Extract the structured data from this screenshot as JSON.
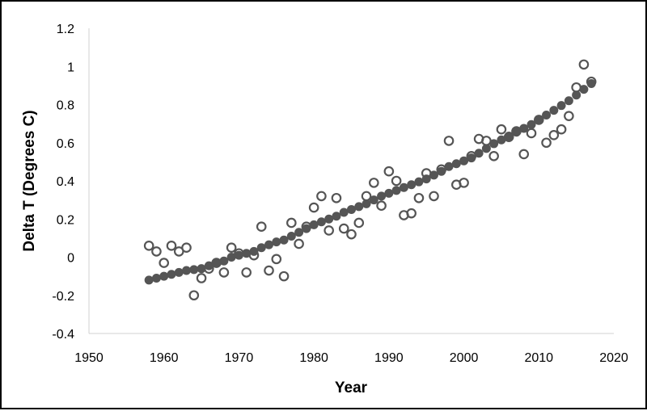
{
  "chart_data": {
    "type": "scatter",
    "xlabel": "Year",
    "ylabel": "Delta T (Degrees C)",
    "xlim": [
      1950,
      2020
    ],
    "ylim": [
      -0.4,
      1.2
    ],
    "x_ticks": [
      1950,
      1960,
      1970,
      1980,
      1990,
      2000,
      2010,
      2020
    ],
    "y_ticks": [
      -0.4,
      -0.2,
      0,
      0.2,
      0.4,
      0.6,
      0.8,
      1,
      1.2
    ],
    "x_tick_labels": [
      "1950",
      "1960",
      "1970",
      "1980",
      "1990",
      "2000",
      "2010",
      "2020"
    ],
    "y_tick_labels": [
      "-0.4",
      "-0.2",
      "0",
      "0.2",
      "0.4",
      "0.6",
      "0.8",
      "1",
      "1.2"
    ],
    "grid": false,
    "legend": "none",
    "series": [
      {
        "marker": "open-circle",
        "color": "#555555",
        "x": [
          1958,
          1959,
          1960,
          1961,
          1962,
          1963,
          1964,
          1965,
          1966,
          1967,
          1968,
          1969,
          1970,
          1971,
          1972,
          1973,
          1974,
          1975,
          1976,
          1977,
          1978,
          1979,
          1980,
          1981,
          1982,
          1983,
          1984,
          1985,
          1986,
          1987,
          1988,
          1989,
          1990,
          1991,
          1992,
          1993,
          1994,
          1995,
          1996,
          1997,
          1998,
          1999,
          2000,
          2001,
          2002,
          2003,
          2004,
          2005,
          2006,
          2007,
          2008,
          2009,
          2010,
          2011,
          2012,
          2013,
          2014,
          2015,
          2016,
          2017
        ],
        "y": [
          0.06,
          0.03,
          -0.03,
          0.06,
          0.03,
          0.05,
          -0.2,
          -0.11,
          -0.06,
          -0.03,
          -0.08,
          0.05,
          0.02,
          -0.08,
          0.01,
          0.16,
          -0.07,
          -0.01,
          -0.1,
          0.18,
          0.07,
          0.16,
          0.26,
          0.32,
          0.14,
          0.31,
          0.15,
          0.12,
          0.18,
          0.32,
          0.39,
          0.27,
          0.45,
          0.4,
          0.22,
          0.23,
          0.31,
          0.44,
          0.32,
          0.46,
          0.61,
          0.38,
          0.39,
          0.53,
          0.62,
          0.61,
          0.53,
          0.67,
          0.63,
          0.66,
          0.54,
          0.65,
          0.72,
          0.6,
          0.64,
          0.67,
          0.74,
          0.89,
          1.01,
          0.92
        ]
      },
      {
        "marker": "filled-circle",
        "color": "#555555",
        "x": [
          1958,
          1959,
          1960,
          1961,
          1962,
          1963,
          1964,
          1965,
          1966,
          1967,
          1968,
          1969,
          1970,
          1971,
          1972,
          1973,
          1974,
          1975,
          1976,
          1977,
          1978,
          1979,
          1980,
          1981,
          1982,
          1983,
          1984,
          1985,
          1986,
          1987,
          1988,
          1989,
          1990,
          1991,
          1992,
          1993,
          1994,
          1995,
          1996,
          1997,
          1998,
          1999,
          2000,
          2001,
          2002,
          2003,
          2004,
          2005,
          2006,
          2007,
          2008,
          2009,
          2010,
          2011,
          2012,
          2013,
          2014,
          2015,
          2016,
          2017
        ],
        "y": [
          -0.12,
          -0.11,
          -0.1,
          -0.09,
          -0.08,
          -0.07,
          -0.065,
          -0.06,
          -0.045,
          -0.03,
          -0.02,
          0.0,
          0.01,
          0.02,
          0.03,
          0.05,
          0.065,
          0.08,
          0.09,
          0.11,
          0.13,
          0.15,
          0.17,
          0.185,
          0.2,
          0.215,
          0.235,
          0.25,
          0.265,
          0.28,
          0.3,
          0.32,
          0.335,
          0.35,
          0.365,
          0.38,
          0.395,
          0.41,
          0.43,
          0.45,
          0.475,
          0.49,
          0.505,
          0.52,
          0.545,
          0.57,
          0.595,
          0.615,
          0.635,
          0.655,
          0.675,
          0.695,
          0.72,
          0.745,
          0.77,
          0.795,
          0.82,
          0.85,
          0.88,
          0.91
        ]
      }
    ]
  }
}
